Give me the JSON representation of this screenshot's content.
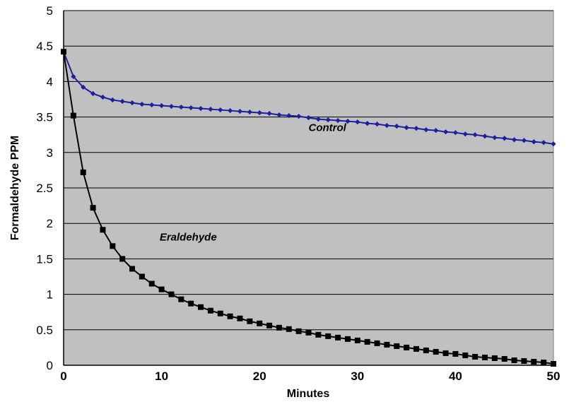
{
  "chart_data": {
    "type": "line",
    "title": "",
    "xlabel": "Minutes",
    "ylabel": "Formaldehyde PPM",
    "xlim": [
      0,
      50
    ],
    "ylim": [
      0,
      5
    ],
    "x_ticks": [
      0,
      10,
      20,
      30,
      40,
      50
    ],
    "y_ticks": [
      0,
      0.5,
      1,
      1.5,
      2,
      2.5,
      3,
      3.5,
      4,
      4.5,
      5
    ],
    "grid": true,
    "plot_background": "#c0c0c0",
    "series": [
      {
        "name": "Control",
        "color": "#1f1f9e",
        "marker": "diamond",
        "x": [
          0,
          1,
          2,
          3,
          4,
          5,
          6,
          7,
          8,
          9,
          10,
          11,
          12,
          13,
          14,
          15,
          16,
          17,
          18,
          19,
          20,
          21,
          22,
          23,
          24,
          25,
          26,
          27,
          28,
          29,
          30,
          31,
          32,
          33,
          34,
          35,
          36,
          37,
          38,
          39,
          40,
          41,
          42,
          43,
          44,
          45,
          46,
          47,
          48,
          49,
          50
        ],
        "values": [
          4.42,
          4.07,
          3.92,
          3.83,
          3.78,
          3.74,
          3.72,
          3.7,
          3.68,
          3.67,
          3.66,
          3.65,
          3.64,
          3.63,
          3.62,
          3.61,
          3.6,
          3.59,
          3.58,
          3.57,
          3.56,
          3.55,
          3.53,
          3.52,
          3.51,
          3.49,
          3.47,
          3.46,
          3.45,
          3.44,
          3.43,
          3.41,
          3.4,
          3.38,
          3.37,
          3.35,
          3.34,
          3.32,
          3.31,
          3.29,
          3.28,
          3.26,
          3.25,
          3.23,
          3.21,
          3.2,
          3.18,
          3.17,
          3.15,
          3.14,
          3.12
        ]
      },
      {
        "name": "Eraldehyde",
        "color": "#000000",
        "marker": "square",
        "x": [
          0,
          1,
          2,
          3,
          4,
          5,
          6,
          7,
          8,
          9,
          10,
          11,
          12,
          13,
          14,
          15,
          16,
          17,
          18,
          19,
          20,
          21,
          22,
          23,
          24,
          25,
          26,
          27,
          28,
          29,
          30,
          31,
          32,
          33,
          34,
          35,
          36,
          37,
          38,
          39,
          40,
          41,
          42,
          43,
          44,
          45,
          46,
          47,
          48,
          49,
          50
        ],
        "values": [
          4.42,
          3.52,
          2.72,
          2.22,
          1.91,
          1.68,
          1.5,
          1.36,
          1.25,
          1.15,
          1.07,
          1.0,
          0.93,
          0.87,
          0.82,
          0.77,
          0.73,
          0.69,
          0.66,
          0.62,
          0.59,
          0.56,
          0.53,
          0.51,
          0.48,
          0.46,
          0.43,
          0.41,
          0.39,
          0.37,
          0.35,
          0.33,
          0.31,
          0.29,
          0.27,
          0.25,
          0.23,
          0.21,
          0.19,
          0.17,
          0.16,
          0.14,
          0.12,
          0.11,
          0.1,
          0.09,
          0.07,
          0.06,
          0.05,
          0.04,
          0.02
        ]
      }
    ],
    "annotations": [
      {
        "text": "Control",
        "series": "Control",
        "x": 25,
        "y": 3.3
      },
      {
        "text": "Eraldehyde",
        "series": "Eraldehyde",
        "x": 9.8,
        "y": 1.76
      }
    ]
  }
}
